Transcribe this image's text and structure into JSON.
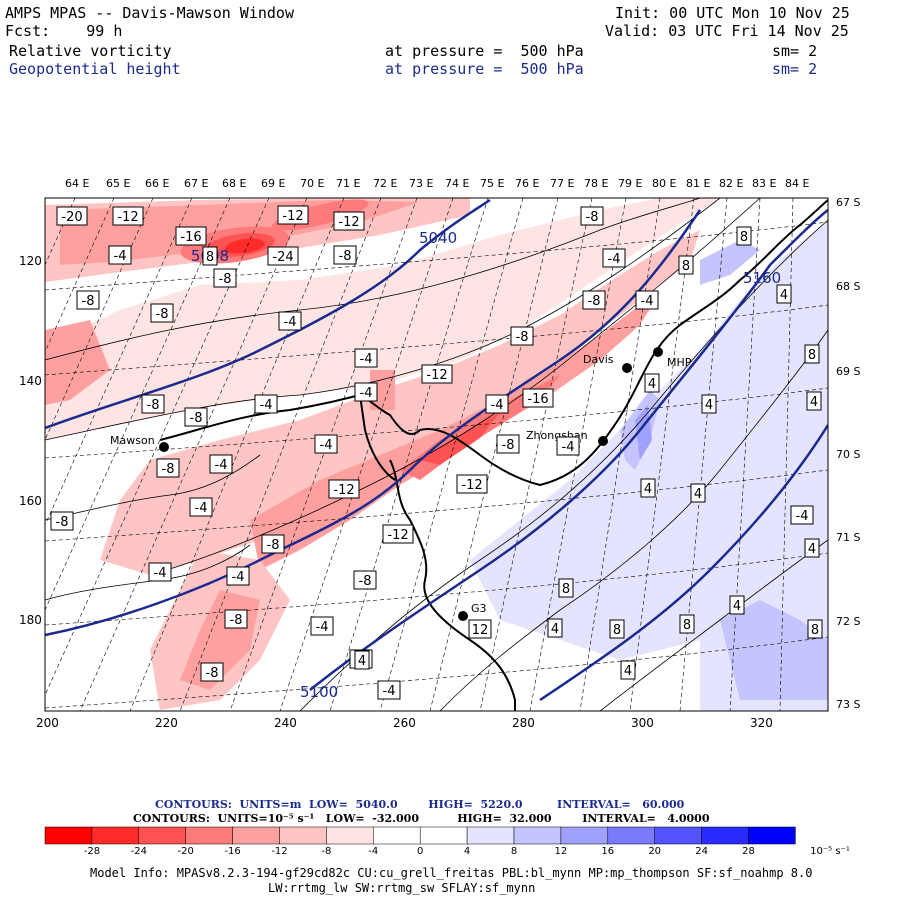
{
  "header": {
    "title": "AMPS MPAS -- Davis-Mawson Window",
    "fcst": "Fcst:    99 h",
    "init": "Init: 00 UTC Mon 10 Nov 25",
    "valid": "Valid: 03 UTC Fri 14 Nov 25",
    "field1": "Relative vorticity",
    "field1_level": "at pressure =  500 hPa",
    "field1_sm": "sm= 2",
    "field2": "Geopotential height",
    "field2_level": "at pressure =  500 hPa",
    "field2_sm": "sm= 2"
  },
  "axes": {
    "lon_labels": [
      "64 E",
      "65 E",
      "66 E",
      "67 E",
      "68 E",
      "69 E",
      "70 E",
      "71 E",
      "72 E",
      "73 E",
      "74 E",
      "75 E",
      "76 E",
      "77 E",
      "78 E",
      "79 E",
      "80 E",
      "81 E",
      "82 E",
      "83 E",
      "84 E"
    ],
    "lat_labels": [
      "67 S",
      "68 S",
      "69 S",
      "70 S",
      "71 S",
      "72 S",
      "73 S"
    ],
    "x_ticks": [
      "200",
      "220",
      "240",
      "260",
      "280",
      "300",
      "320"
    ],
    "y_ticks": [
      "120",
      "140",
      "160",
      "180"
    ]
  },
  "stations": [
    {
      "name": "Mawson"
    },
    {
      "name": "Davis"
    },
    {
      "name": "MHP"
    },
    {
      "name": "Zhongshan"
    },
    {
      "name": "G3"
    }
  ],
  "height_labels": [
    "5040",
    "5100",
    "5160",
    "5040"
  ],
  "vort_labels": [
    "-20",
    "-12",
    "-16",
    "-24",
    "-12",
    "-12",
    "-4",
    "5008",
    "-8",
    "-8",
    "-8",
    "-8",
    "-4",
    "-4",
    "-8",
    "-8",
    "-4",
    "-8",
    "-4",
    "-8",
    "-4",
    "-12",
    "-12",
    "-16",
    "-8",
    "-8",
    "-4",
    "-8",
    "-8",
    "-4",
    "-4",
    "-4",
    "-4",
    "-8",
    "-12",
    "-4",
    "-8",
    "-4",
    "-4",
    "-8",
    "-8",
    "-4",
    "-4",
    "-12",
    "-8",
    "-4",
    "4",
    "4",
    "8",
    "8",
    "8",
    "4",
    "8",
    "4",
    "4",
    "8",
    "4",
    "-4",
    "4",
    "4",
    "8",
    "8",
    "4",
    "4",
    "8",
    "12",
    "4"
  ],
  "info": {
    "line1": "CONTOURS:  UNITS=m  LOW=  5040.0        HIGH=  5220.0         INTERVAL=   60.000",
    "line2": "CONTOURS:  UNITS=10⁻⁵ s⁻¹   LOW=  -32.000          HIGH=  32.000        INTERVAL=   4.0000"
  },
  "colorbar": {
    "colors": [
      "#ff0000",
      "#ff2a2a",
      "#ff5252",
      "#ff7a7a",
      "#ffa0a0",
      "#ffc4c4",
      "#ffe4e4",
      "#ffffff",
      "#ffffff",
      "#e4e4ff",
      "#c4c4ff",
      "#a0a0ff",
      "#7a7aff",
      "#5252ff",
      "#2a2aff",
      "#0000ff"
    ],
    "labels": [
      "-32",
      "-28",
      "-24",
      "-20",
      "-16",
      "-12",
      "-8",
      "-4",
      "0",
      "4",
      "8",
      "12",
      "16",
      "20",
      "24",
      "28",
      "32"
    ],
    "unit": "10⁻⁵ s⁻¹"
  },
  "model_info": {
    "line1": "Model Info: MPASv8.2.3-194-gf29cd82c CU:cu_grell_freitas PBL:bl_mynn MP:mp_thompson SF:sf_noahmp 8.0",
    "line2": "LW:rrtmg_lw SW:rrtmg_sw SFLAY:sf_mynn"
  }
}
